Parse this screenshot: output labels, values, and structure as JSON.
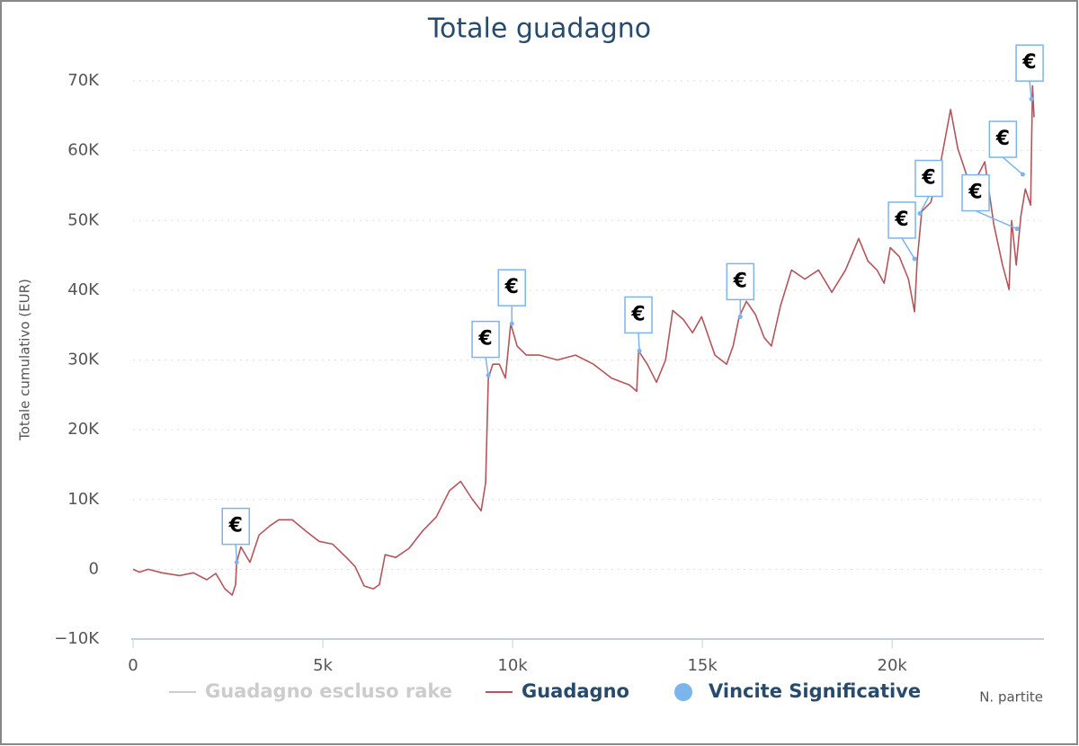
{
  "chart_data": {
    "type": "line",
    "title": "Totale guadagno",
    "y_label": "Totale cumulativo (EUR)",
    "x_label": "N. partite",
    "xlim": [
      0,
      24000
    ],
    "ylim": [
      -10000,
      70000
    ],
    "xticks": [
      0,
      {
        "value": 5000,
        "label": "5k"
      },
      {
        "value": 10000,
        "label": "10k"
      },
      {
        "value": 15000,
        "label": "15k"
      },
      {
        "value": 20000,
        "label": "20k"
      }
    ],
    "yticks": [
      {
        "value": -10000,
        "label": "−10K"
      },
      0,
      {
        "value": 10000,
        "label": "10K"
      },
      {
        "value": 20000,
        "label": "20K"
      },
      {
        "value": 30000,
        "label": "30K"
      },
      {
        "value": 40000,
        "label": "40K"
      },
      {
        "value": 50000,
        "label": "50K"
      },
      {
        "value": 60000,
        "label": "60K"
      },
      {
        "value": 70000,
        "label": "70K"
      }
    ],
    "grid": true,
    "series": [
      {
        "name": "Guadagno escluso rake",
        "color": "#cccccc",
        "visible": false
      },
      {
        "name": "Guadagno",
        "color": "#b5555a",
        "x": [
          0,
          166,
          400,
          760,
          1230,
          1590,
          1940,
          2180,
          2420,
          2610,
          2700,
          2730,
          2840,
          3080,
          3320,
          3600,
          3840,
          4190,
          4550,
          4900,
          5260,
          5620,
          5850,
          6090,
          6330,
          6490,
          6640,
          6920,
          7270,
          7630,
          7990,
          8340,
          8630,
          8930,
          9170,
          9290,
          9360,
          9480,
          9650,
          9810,
          9950,
          10120,
          10360,
          10710,
          11180,
          11660,
          12130,
          12610,
          13080,
          13270,
          13320,
          13550,
          13790,
          14030,
          14220,
          14500,
          14740,
          14980,
          15330,
          15640,
          15810,
          15970,
          16160,
          16400,
          16630,
          16820,
          17060,
          17350,
          17700,
          18060,
          18410,
          18770,
          19120,
          19360,
          19600,
          19790,
          19950,
          20190,
          20430,
          20590,
          20660,
          20780,
          21020,
          21260,
          21540,
          21730,
          21970,
          22200,
          22440,
          22680,
          22910,
          23080,
          23150,
          23270,
          23390,
          23510,
          23650,
          23700,
          23740
        ],
        "values": [
          0,
          -400,
          0,
          -500,
          -900,
          -500,
          -1500,
          -600,
          -2800,
          -3700,
          -2200,
          1000,
          3200,
          1000,
          4900,
          6200,
          7100,
          7100,
          5500,
          4000,
          3600,
          1700,
          400,
          -2400,
          -2800,
          -2200,
          2100,
          1700,
          3000,
          5500,
          7500,
          11300,
          12600,
          10100,
          8400,
          12400,
          27400,
          29400,
          29400,
          27400,
          35200,
          32000,
          30700,
          30700,
          30000,
          30700,
          29400,
          27400,
          26400,
          25500,
          31300,
          29400,
          26800,
          30000,
          37100,
          35800,
          33900,
          36200,
          30700,
          29400,
          32000,
          36200,
          38400,
          36500,
          33200,
          32000,
          37800,
          42900,
          41600,
          42900,
          39700,
          42900,
          47400,
          44200,
          42900,
          41000,
          46100,
          44800,
          41600,
          36900,
          44200,
          51300,
          52600,
          57700,
          65900,
          60300,
          56400,
          55800,
          58400,
          49400,
          43600,
          40100,
          50000,
          43600,
          50600,
          54500,
          52200,
          69300,
          64800
        ]
      },
      {
        "name": "Vincite Significative",
        "type": "scatter",
        "color": "#7cb5ec",
        "data_label": "€",
        "x": [
          2730,
          9360,
          9980,
          13340,
          16000,
          20590,
          20730,
          23290,
          23440,
          23670
        ],
        "values": [
          1000,
          27800,
          35200,
          31300,
          36200,
          44500,
          51000,
          48800,
          56600,
          67400
        ]
      }
    ]
  }
}
